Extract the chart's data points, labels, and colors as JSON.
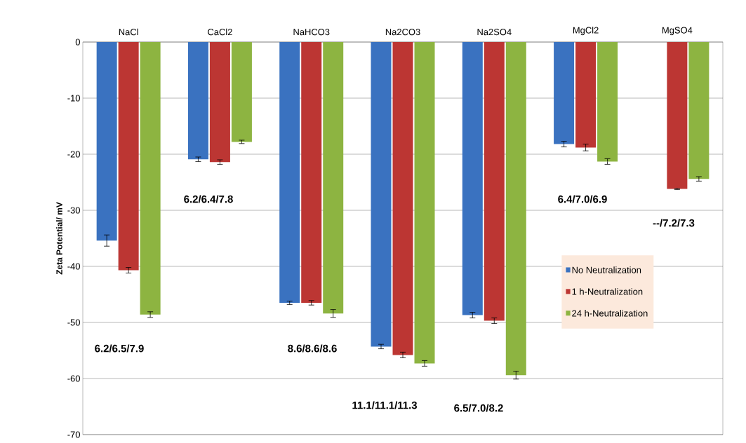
{
  "chart_data": {
    "type": "bar",
    "ylabel": "Zeta Potential/ mV",
    "categories": [
      "NaCl",
      "CaCl2",
      "NaHCO3",
      "Na2CO3",
      "Na2SO4",
      "MgCl2",
      "MgSO4"
    ],
    "series": [
      {
        "name": "No Neutralization",
        "color": "#3a72c0",
        "values": [
          -35.4,
          -20.9,
          -46.5,
          -54.3,
          -48.7,
          -18.2,
          null
        ],
        "errors": [
          1.0,
          0.4,
          0.3,
          0.4,
          0.5,
          0.5,
          null
        ]
      },
      {
        "name": "1 h-Neutralization",
        "color": "#bc3633",
        "values": [
          -40.7,
          -21.4,
          -46.5,
          -55.8,
          -49.7,
          -18.8,
          -26.2
        ],
        "errors": [
          0.5,
          0.4,
          0.4,
          0.5,
          0.5,
          0.6,
          0.1
        ]
      },
      {
        "name": "24 h-Neutralization",
        "color": "#8db441",
        "values": [
          -48.6,
          -17.8,
          -48.4,
          -57.3,
          -59.4,
          -21.3,
          -24.4
        ],
        "errors": [
          0.5,
          0.3,
          0.7,
          0.5,
          0.7,
          0.5,
          0.4
        ]
      }
    ],
    "ylim": [
      -70,
      0
    ],
    "yticks": [
      -70,
      -60,
      -50,
      -40,
      -30,
      -20,
      -10,
      0
    ],
    "grid": "y",
    "legend": "right",
    "annotations": [
      "6.2/6.5/7.9",
      "6.2/6.4/7.8",
      "8.6/8.6/8.6",
      "11.1/11.1/11.3",
      "6.5/7.0/8.2",
      "6.4/7.0/6.9",
      "--/7.2/7.3"
    ]
  }
}
